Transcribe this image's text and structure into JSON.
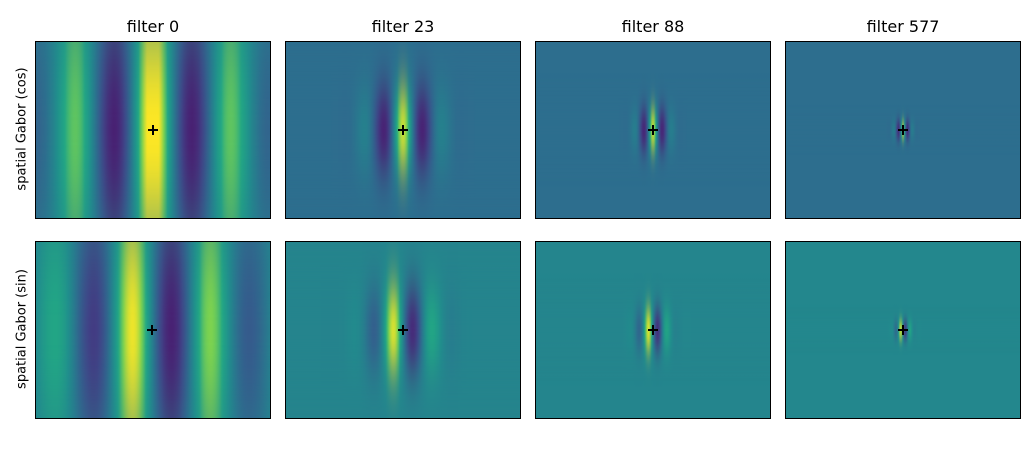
{
  "chart_data": {
    "type": "heatmap",
    "colormap": "viridis",
    "columns": [
      {
        "title": "filter 0"
      },
      {
        "title": "filter 23"
      },
      {
        "title": "filter 88"
      },
      {
        "title": "filter 577"
      }
    ],
    "rows": [
      {
        "label": "spatial Gabor (cos)"
      },
      {
        "label": "spatial Gabor (sin)"
      }
    ],
    "center_marker": "+",
    "axes_ticks": "none",
    "grid": false
  }
}
